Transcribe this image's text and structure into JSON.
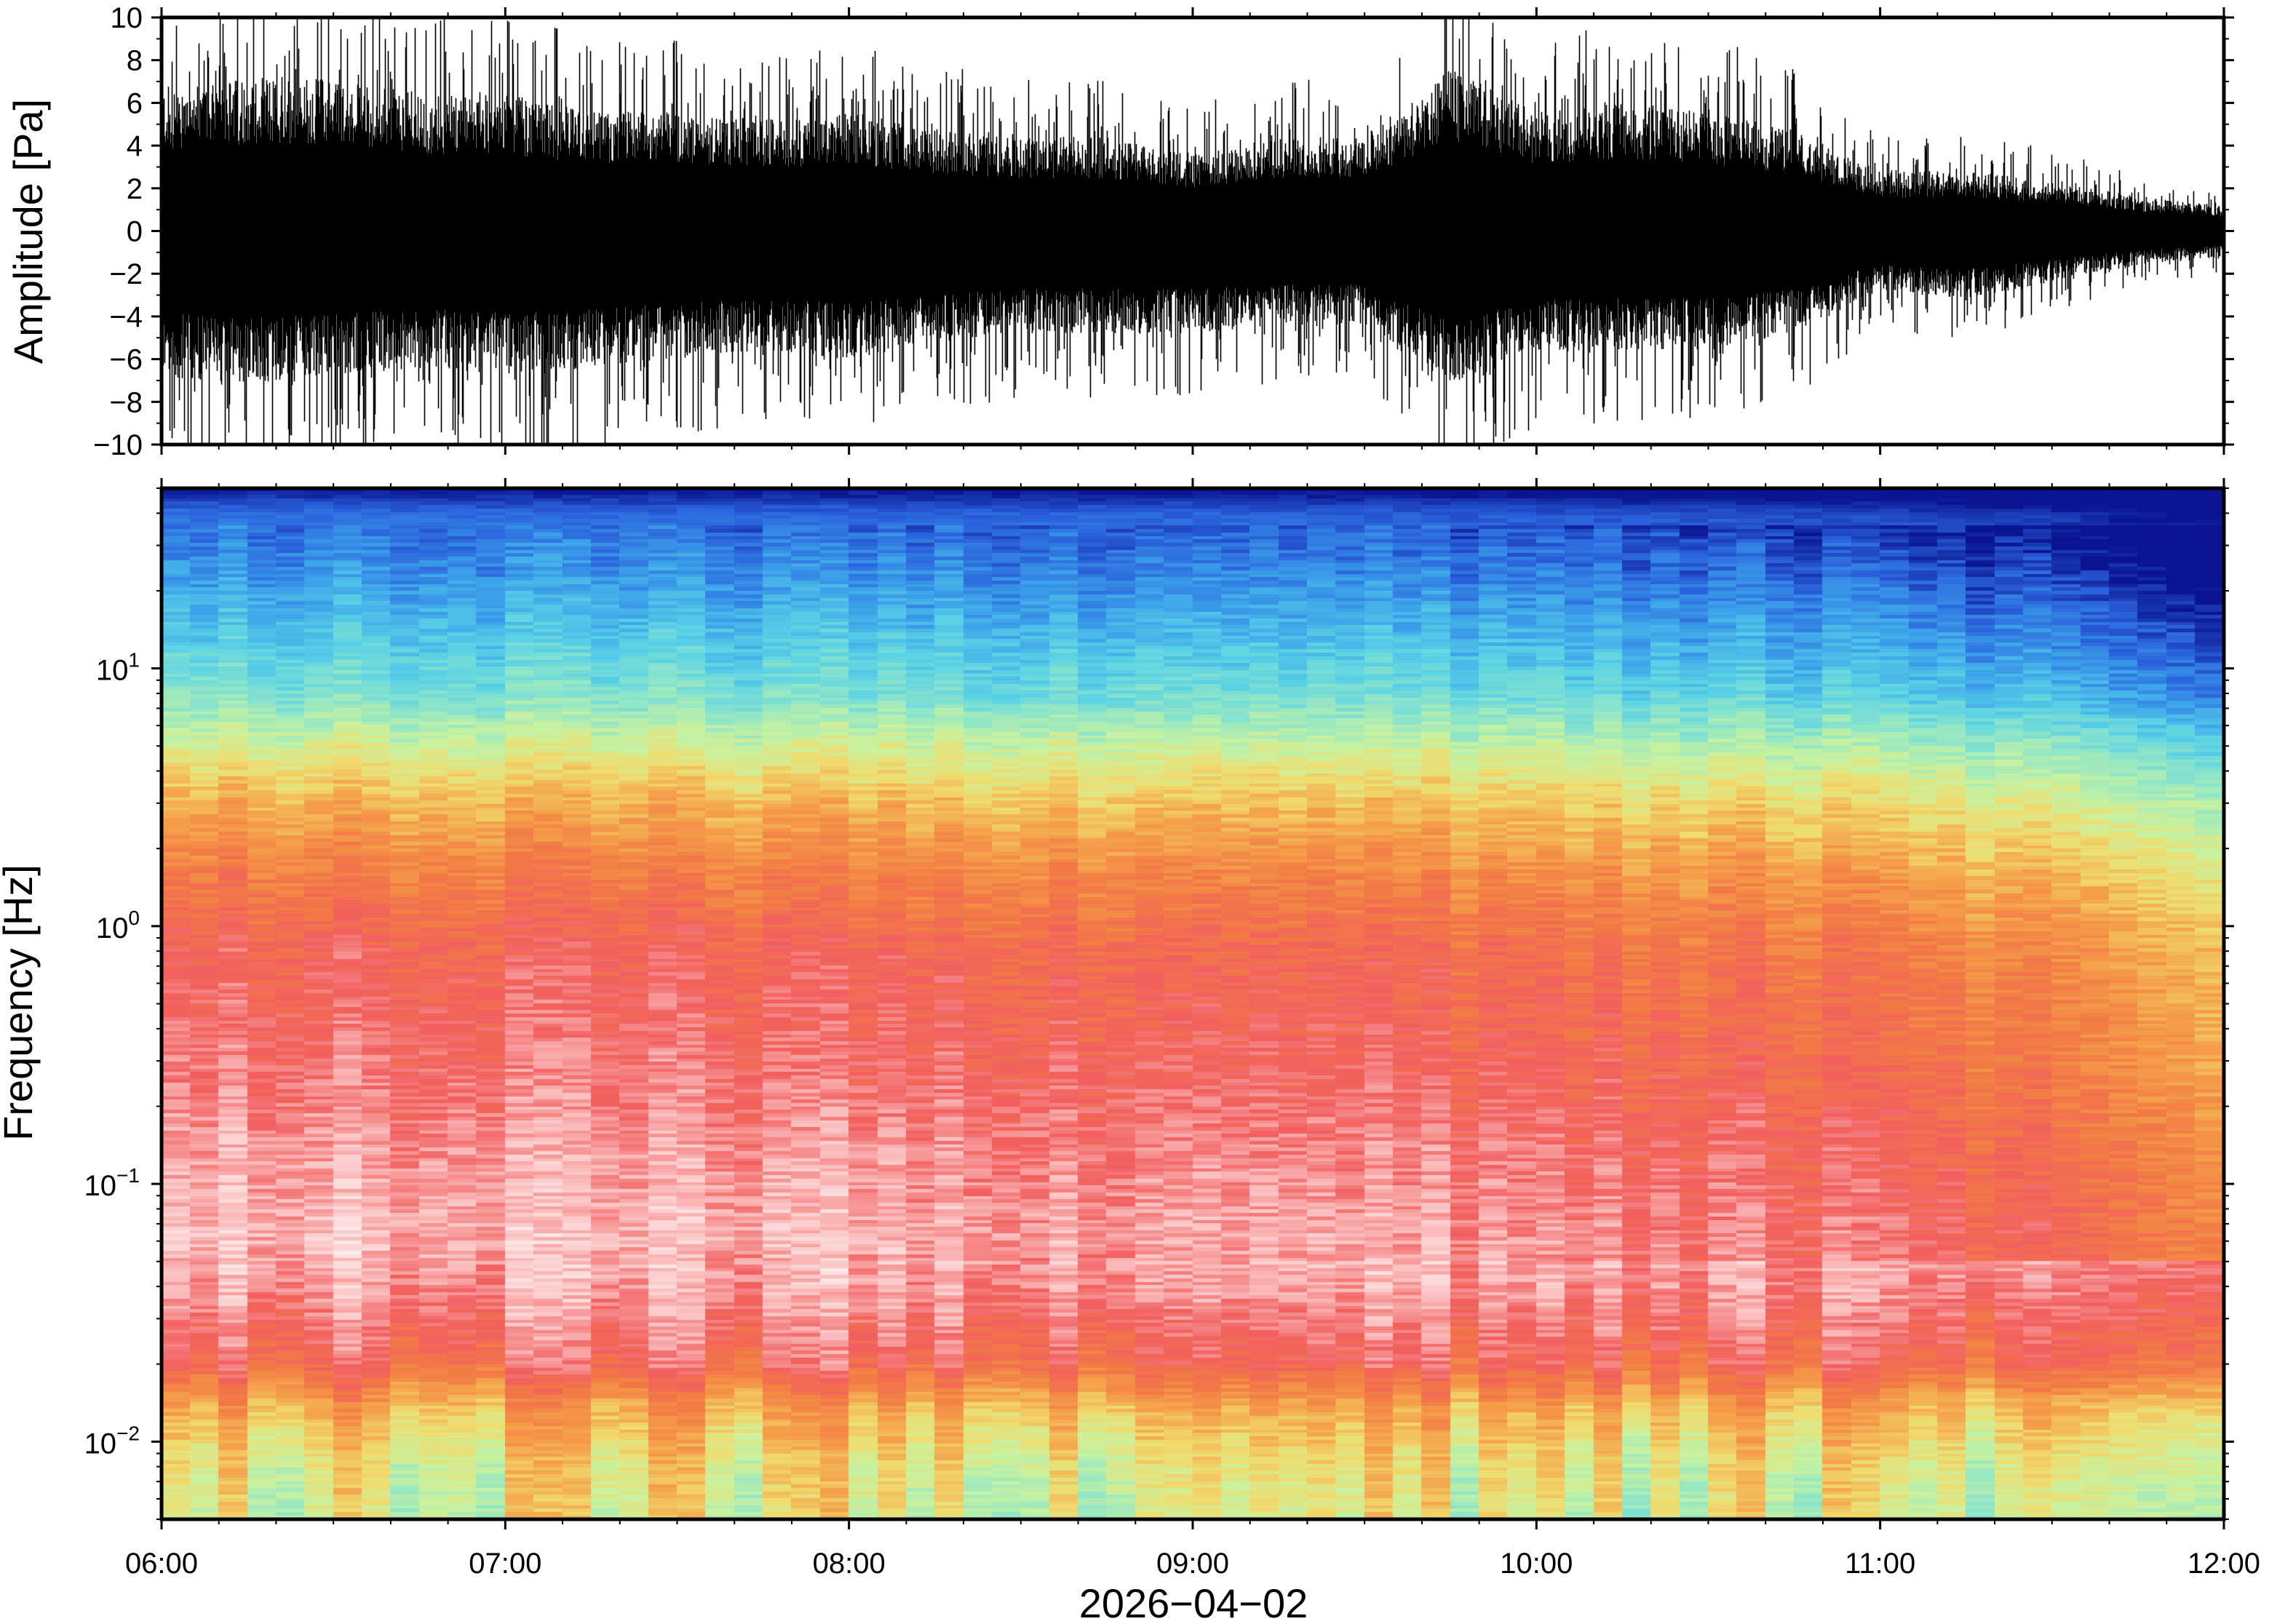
{
  "chart_data": [
    {
      "type": "line",
      "panel": "waveform",
      "ylabel": "Amplitude [Pa]",
      "ylim": [
        -10,
        10
      ],
      "yticks": [
        "10",
        "8",
        "6",
        "4",
        "2",
        "0",
        "−2",
        "−4",
        "−6",
        "−8",
        "−10"
      ],
      "ytick_values": [
        10,
        8,
        6,
        4,
        2,
        0,
        -2,
        -4,
        -6,
        -8,
        -10
      ],
      "xlim": [
        "06:00",
        "12:00"
      ],
      "grid": false,
      "series": [
        {
          "color": "#000000",
          "x": [
            "06:00",
            "06:15",
            "06:30",
            "06:45",
            "07:00",
            "07:15",
            "07:30",
            "07:45",
            "08:00",
            "08:15",
            "08:30",
            "08:45",
            "09:00",
            "09:15",
            "09:30",
            "09:45",
            "10:00",
            "10:15",
            "10:30",
            "10:45",
            "11:00",
            "11:15",
            "11:30",
            "11:45",
            "12:00"
          ],
          "envelope_max": [
            8.5,
            9,
            9,
            8,
            8,
            7,
            7,
            6.5,
            7,
            6,
            5.5,
            5.5,
            4.5,
            5.5,
            5.5,
            9.5,
            7,
            7.5,
            7,
            6,
            3.5,
            3.5,
            3,
            2,
            1.5
          ],
          "envelope_min": [
            -8.5,
            -9,
            -8.5,
            -8,
            -8.5,
            -8,
            -7.5,
            -7,
            -7.5,
            -6.5,
            -6,
            -6,
            -6,
            -5.5,
            -5.5,
            -9.5,
            -7,
            -7,
            -7,
            -6,
            -3.5,
            -4,
            -3,
            -2,
            -1.5
          ]
        }
      ]
    },
    {
      "type": "heatmap",
      "panel": "spectrogram",
      "ylabel": "Frequency [Hz]",
      "yscale": "log",
      "ylim": [
        0.005,
        50
      ],
      "yticks": [
        {
          "base": "10",
          "exp": "1",
          "value": 10
        },
        {
          "base": "10",
          "exp": "0",
          "value": 1
        },
        {
          "base": "10",
          "exp": "−1",
          "value": 0.1
        },
        {
          "base": "10",
          "exp": "−2",
          "value": 0.01
        }
      ],
      "xlabel": "2026−04−02",
      "xticks": [
        "06:00",
        "07:00",
        "08:00",
        "09:00",
        "10:00",
        "11:00",
        "12:00"
      ],
      "xlim": [
        "06:00",
        "12:00"
      ],
      "colormap": [
        "#ffffff",
        "#fbbfbf",
        "#f25f5f",
        "#f27a45",
        "#f5a04a",
        "#f0dc6e",
        "#c8f2a0",
        "#8fe6c8",
        "#5ad2e6",
        "#3ca2ea",
        "#2a62dc",
        "#0a1490"
      ],
      "frequency_profile": [
        {
          "f": 50,
          "level": 11
        },
        {
          "f": 40,
          "level": 9.8
        },
        {
          "f": 25,
          "level": 9.2
        },
        {
          "f": 15,
          "level": 8.3
        },
        {
          "f": 8,
          "level": 7.2
        },
        {
          "f": 5,
          "level": 5.6
        },
        {
          "f": 3,
          "level": 4.2
        },
        {
          "f": 1.5,
          "level": 2.9
        },
        {
          "f": 0.8,
          "level": 2.1
        },
        {
          "f": 0.3,
          "level": 1.7
        },
        {
          "f": 0.12,
          "level": 1.2
        },
        {
          "f": 0.06,
          "level": 0.9
        },
        {
          "f": 0.035,
          "level": 1.4
        },
        {
          "f": 0.02,
          "level": 2.2
        },
        {
          "f": 0.013,
          "level": 4.2
        },
        {
          "f": 0.008,
          "level": 5.2
        },
        {
          "f": 0.005,
          "level": 5.6
        }
      ],
      "time_trend": {
        "x": [
          "06:00",
          "09:30",
          "11:00",
          "11:30",
          "11:45",
          "12:00"
        ],
        "shift": [
          0,
          0.4,
          0.9,
          1.4,
          1.9,
          2.4
        ]
      }
    }
  ]
}
